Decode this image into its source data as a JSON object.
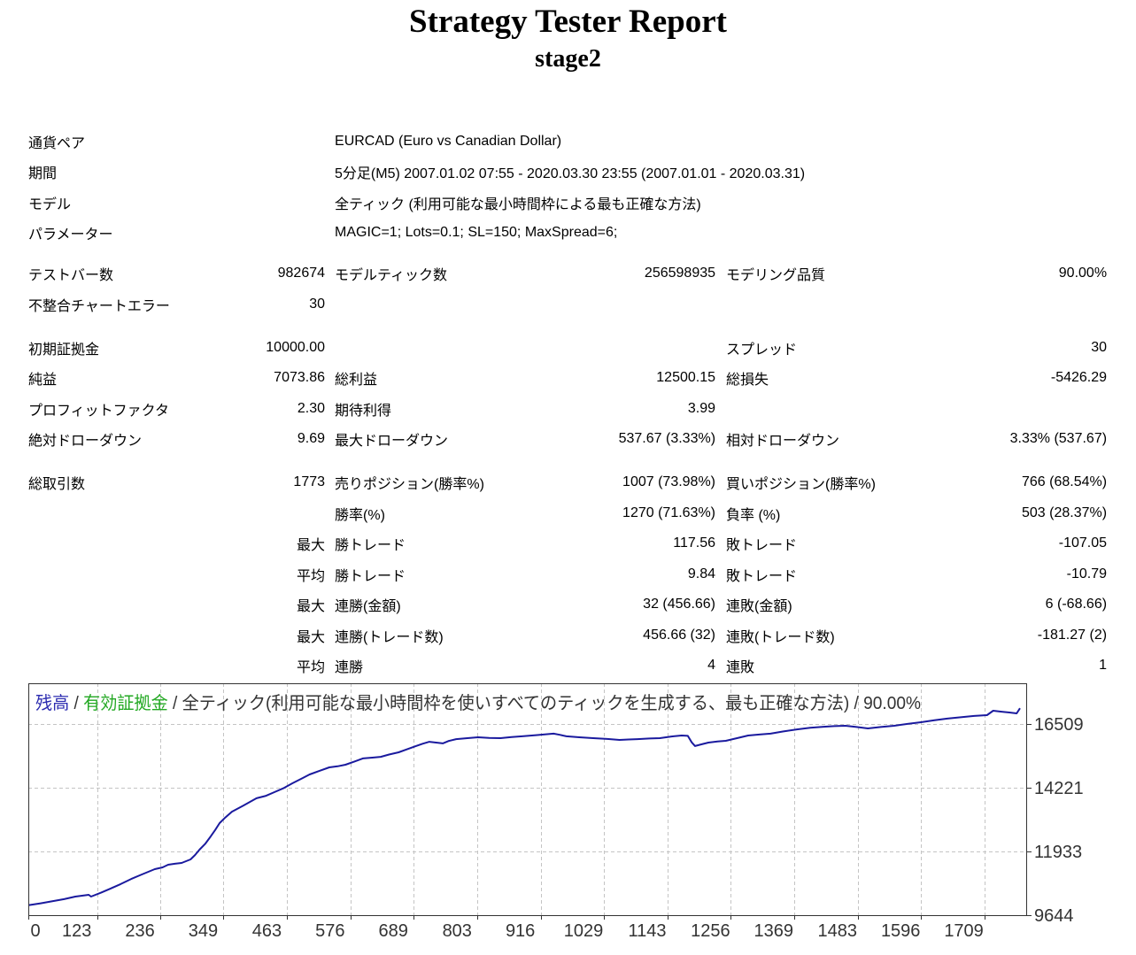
{
  "report": {
    "title": "Strategy Tester Report",
    "subtitle": "stage2"
  },
  "summary": {
    "symbol": {
      "label": "通貨ペア",
      "value": "EURCAD (Euro vs Canadian Dollar)"
    },
    "period": {
      "label": "期間",
      "value": "5分足(M5) 2007.01.02 07:55 - 2020.03.30 23:55 (2007.01.01 - 2020.03.31)"
    },
    "model": {
      "label": "モデル",
      "value": "全ティック (利用可能な最小時間枠による最も正確な方法)"
    },
    "parameters": {
      "label": "パラメーター",
      "value": "MAGIC=1; Lots=0.1; SL=150; MaxSpread=6;"
    }
  },
  "testing": {
    "bars": {
      "label": "テストバー数",
      "value": "982674"
    },
    "ticks": {
      "label": "モデルティック数",
      "value": "256598935"
    },
    "quality": {
      "label": "モデリング品質",
      "value": "90.00%"
    },
    "mismatched_errors": {
      "label": "不整合チャートエラー",
      "value": "30"
    }
  },
  "results": {
    "initial_deposit": {
      "label": "初期証拠金",
      "value": "10000.00"
    },
    "spread": {
      "label": "スプレッド",
      "value": "30"
    },
    "net_profit": {
      "label": "純益",
      "value": "7073.86"
    },
    "gross_profit": {
      "label": "総利益",
      "value": "12500.15"
    },
    "gross_loss": {
      "label": "総損失",
      "value": "-5426.29"
    },
    "profit_factor": {
      "label": "プロフィットファクタ",
      "value": "2.30"
    },
    "expected_payoff": {
      "label": "期待利得",
      "value": "3.99"
    },
    "absolute_drawdown": {
      "label": "絶対ドローダウン",
      "value": "9.69"
    },
    "maximal_drawdown": {
      "label": "最大ドローダウン",
      "value": "537.67 (3.33%)"
    },
    "relative_drawdown": {
      "label": "相対ドローダウン",
      "value": "3.33% (537.67)"
    }
  },
  "trades": {
    "total": {
      "label": "総取引数",
      "value": "1773"
    },
    "short": {
      "label": "売りポジション(勝率%)",
      "value": "1007 (73.98%)"
    },
    "long": {
      "label": "買いポジション(勝率%)",
      "value": "766 (68.54%)"
    },
    "profit_trades": {
      "label": "勝率(%)",
      "value": "1270 (71.63%)"
    },
    "loss_trades": {
      "label": "負率 (%)",
      "value": "503 (28.37%)"
    },
    "largest": {
      "label": "最大",
      "win_label": "勝トレード",
      "win_value": "117.56",
      "loss_label": "敗トレード",
      "loss_value": "-107.05"
    },
    "average": {
      "label": "平均",
      "win_label": "勝トレード",
      "win_value": "9.84",
      "loss_label": "敗トレード",
      "loss_value": "-10.79"
    },
    "max_consecutive_amount": {
      "label": "最大",
      "win_label": "連勝(金額)",
      "win_value": "32 (456.66)",
      "loss_label": "連敗(金額)",
      "loss_value": "6 (-68.66)"
    },
    "max_consecutive_count": {
      "label": "最大",
      "win_label": "連勝(トレード数)",
      "win_value": "456.66 (32)",
      "loss_label": "連敗(トレード数)",
      "loss_value": "-181.27 (2)"
    },
    "average_consecutive": {
      "label": "平均",
      "win_label": "連勝",
      "win_value": "4",
      "loss_label": "連敗",
      "loss_value": "1"
    }
  },
  "chart_data": {
    "type": "line",
    "legend": {
      "balance": "残高",
      "separator": "/",
      "equity": "有効証拠金",
      "model": "全ティック(利用可能な最小時間枠を使いすべてのティックを生成する、最も正確な方法)",
      "quality": "90.00%"
    },
    "xlim": [
      0,
      1773
    ],
    "ylim": [
      9644,
      17969
    ],
    "x_ticks": [
      0,
      123,
      236,
      349,
      463,
      576,
      689,
      803,
      916,
      1029,
      1143,
      1256,
      1369,
      1483,
      1596,
      1709
    ],
    "y_ticks": [
      16509,
      14221,
      11933,
      9644
    ],
    "grid": true,
    "colors": {
      "balance_label": "#2b2bb0",
      "equity_label": "#22a822",
      "text": "#333333",
      "grid": "#c4c4c4",
      "frame": "#333333"
    },
    "series": [
      {
        "name": "残高",
        "color": "#1a1a9e",
        "points": [
          [
            0,
            10000
          ],
          [
            22,
            10070
          ],
          [
            44,
            10150
          ],
          [
            64,
            10220
          ],
          [
            84,
            10310
          ],
          [
            108,
            10375
          ],
          [
            112,
            10310
          ],
          [
            130,
            10450
          ],
          [
            147,
            10600
          ],
          [
            165,
            10760
          ],
          [
            184,
            10945
          ],
          [
            203,
            11105
          ],
          [
            226,
            11295
          ],
          [
            240,
            11360
          ],
          [
            250,
            11455
          ],
          [
            262,
            11490
          ],
          [
            274,
            11520
          ],
          [
            290,
            11645
          ],
          [
            298,
            11800
          ],
          [
            306,
            11995
          ],
          [
            316,
            12200
          ],
          [
            326,
            12470
          ],
          [
            334,
            12700
          ],
          [
            342,
            12950
          ],
          [
            352,
            13150
          ],
          [
            364,
            13360
          ],
          [
            385,
            13585
          ],
          [
            408,
            13840
          ],
          [
            425,
            13930
          ],
          [
            440,
            14060
          ],
          [
            456,
            14200
          ],
          [
            472,
            14380
          ],
          [
            488,
            14540
          ],
          [
            503,
            14695
          ],
          [
            520,
            14820
          ],
          [
            538,
            14950
          ],
          [
            553,
            14990
          ],
          [
            567,
            15045
          ],
          [
            583,
            15160
          ],
          [
            598,
            15270
          ],
          [
            615,
            15300
          ],
          [
            630,
            15330
          ],
          [
            645,
            15410
          ],
          [
            662,
            15490
          ],
          [
            677,
            15600
          ],
          [
            693,
            15715
          ],
          [
            705,
            15800
          ],
          [
            717,
            15870
          ],
          [
            729,
            15840
          ],
          [
            741,
            15810
          ],
          [
            752,
            15900
          ],
          [
            765,
            15965
          ],
          [
            785,
            16000
          ],
          [
            804,
            16030
          ],
          [
            824,
            16010
          ],
          [
            844,
            16000
          ],
          [
            864,
            16040
          ],
          [
            883,
            16065
          ],
          [
            910,
            16110
          ],
          [
            939,
            16160
          ],
          [
            950,
            16120
          ],
          [
            962,
            16065
          ],
          [
            985,
            16030
          ],
          [
            1010,
            16000
          ],
          [
            1035,
            15970
          ],
          [
            1057,
            15935
          ],
          [
            1073,
            15950
          ],
          [
            1089,
            15965
          ],
          [
            1110,
            15985
          ],
          [
            1129,
            16000
          ],
          [
            1150,
            16060
          ],
          [
            1168,
            16095
          ],
          [
            1179,
            16080
          ],
          [
            1186,
            15850
          ],
          [
            1192,
            15715
          ],
          [
            1204,
            15780
          ],
          [
            1216,
            15840
          ],
          [
            1232,
            15880
          ],
          [
            1247,
            15905
          ],
          [
            1267,
            16000
          ],
          [
            1287,
            16095
          ],
          [
            1307,
            16130
          ],
          [
            1327,
            16160
          ],
          [
            1350,
            16240
          ],
          [
            1374,
            16315
          ],
          [
            1398,
            16370
          ],
          [
            1422,
            16410
          ],
          [
            1441,
            16430
          ],
          [
            1461,
            16445
          ],
          [
            1481,
            16400
          ],
          [
            1501,
            16350
          ],
          [
            1524,
            16400
          ],
          [
            1548,
            16445
          ],
          [
            1572,
            16510
          ],
          [
            1596,
            16570
          ],
          [
            1620,
            16640
          ],
          [
            1643,
            16700
          ],
          [
            1667,
            16750
          ],
          [
            1691,
            16795
          ],
          [
            1714,
            16825
          ],
          [
            1725,
            16985
          ],
          [
            1740,
            16950
          ],
          [
            1754,
            16920
          ],
          [
            1767,
            16890
          ],
          [
            1773,
            17073.86
          ]
        ]
      }
    ]
  }
}
